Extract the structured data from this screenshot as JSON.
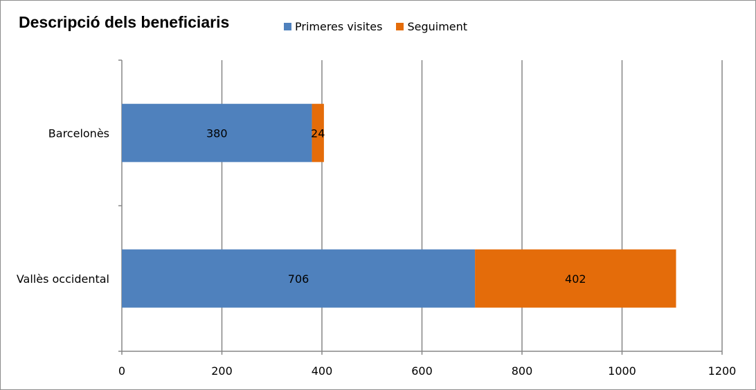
{
  "chart_data": {
    "type": "bar",
    "orientation": "horizontal",
    "stacked": true,
    "title": "Descripció dels beneficiaris",
    "categories": [
      "Barcelonès",
      "Vallès occidental"
    ],
    "series": [
      {
        "name": "Primeres visites",
        "color": "#4f81bd",
        "values": [
          380,
          706
        ]
      },
      {
        "name": "Seguiment",
        "color": "#e46c0a",
        "values": [
          24,
          402
        ]
      }
    ],
    "xlim": [
      0,
      1200
    ],
    "xticks": [
      0,
      200,
      400,
      600,
      800,
      1000,
      1200
    ],
    "grid": true,
    "legend": "top"
  }
}
